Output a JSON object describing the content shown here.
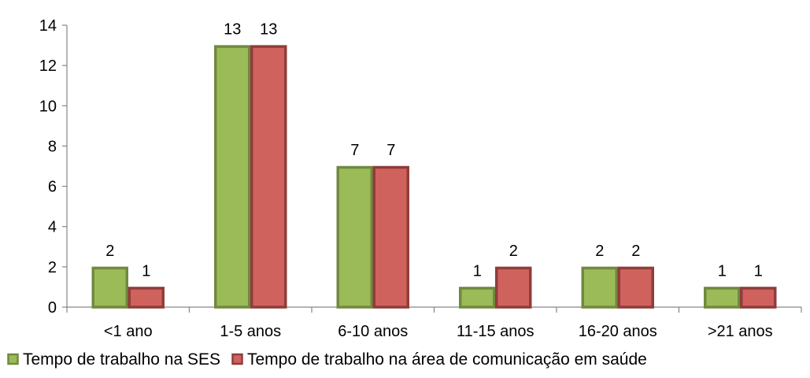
{
  "chart_data": {
    "type": "bar",
    "title": "",
    "xlabel": "",
    "ylabel": "",
    "categories": [
      "<1 ano",
      "1-5 anos",
      "6-10 anos",
      "11-15 anos",
      "16-20 anos",
      ">21 anos"
    ],
    "series": [
      {
        "name": "Tempo de trabalho na SES",
        "values": [
          2,
          13,
          7,
          1,
          2,
          1
        ],
        "color": "#9BBB59",
        "border_color": "#71893F"
      },
      {
        "name": "Tempo de trabalho na área de comunicação em saúde",
        "values": [
          1,
          13,
          7,
          2,
          2,
          1
        ],
        "color": "#D0625E",
        "border_color": "#8F3D3A"
      }
    ],
    "ylim": [
      0,
      14
    ],
    "yticks": [
      0,
      2,
      4,
      6,
      8,
      10,
      12,
      14
    ],
    "grid": false,
    "data_labels": true,
    "legend_position": "bottom"
  }
}
